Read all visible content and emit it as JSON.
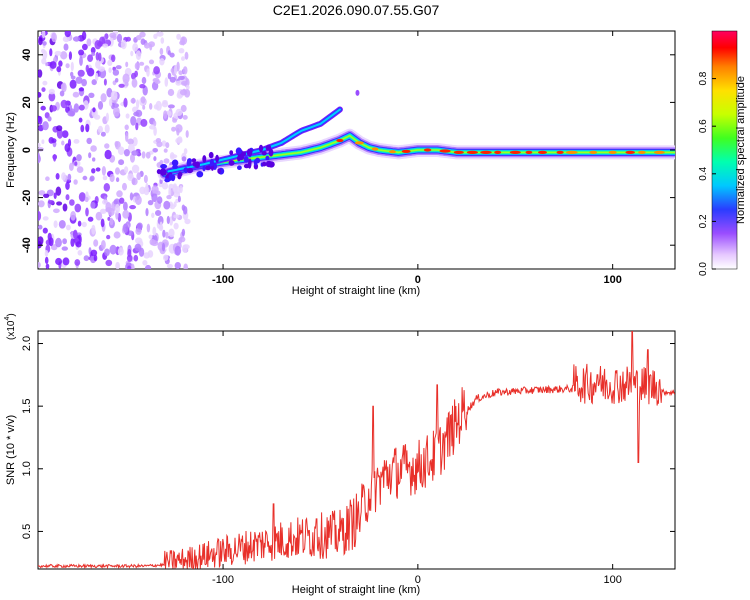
{
  "title": "C2E1.2026.090.07.55.G07",
  "chart_data": [
    {
      "type": "heatmap",
      "name": "spectrogram",
      "xlabel": "Height of straight line (km)",
      "ylabel": "Frequency (Hz)",
      "xlim": [
        -195,
        132
      ],
      "ylim": [
        -50,
        50
      ],
      "xticks": [
        -100,
        0,
        100
      ],
      "yticks": [
        -40,
        -20,
        0,
        20,
        40
      ],
      "noise_region_x": [
        -195,
        -118
      ],
      "ridge": {
        "x": [
          -130,
          -115,
          -100,
          -90,
          -80,
          -70,
          -60,
          -50,
          -40,
          -35,
          -30,
          -25,
          -20,
          -10,
          0,
          10,
          20,
          40,
          60,
          80,
          100,
          115,
          132
        ],
        "y": [
          -10,
          -7,
          -5,
          -4,
          -3,
          -2,
          -1,
          1,
          4,
          6,
          3,
          1,
          0,
          -1,
          0,
          0,
          -1,
          -1,
          -1,
          -1,
          -1,
          -1,
          -1
        ]
      },
      "upper_branch": {
        "x": [
          -128,
          -110,
          -95,
          -80,
          -70,
          -60,
          -50,
          -45,
          -40
        ],
        "y": [
          -9,
          -6,
          -3,
          0,
          3,
          8,
          11,
          14,
          17
        ]
      },
      "isolated_blob": {
        "x": -31,
        "y": 24
      },
      "colorbar": {
        "label": "Normalized spectral amplitude",
        "ticks": [
          0.0,
          0.2,
          0.4,
          0.6,
          0.8
        ],
        "range": [
          0,
          1
        ]
      }
    },
    {
      "type": "line",
      "name": "snr",
      "xlabel": "Height of straight line (km)",
      "ylabel": "SNR (10 * v/v)",
      "multiplier": "(x10",
      "multiplier_exp": "4",
      "multiplier_close": ")",
      "xlim": [
        -195,
        132
      ],
      "ylim": [
        0.2,
        2.1
      ],
      "xticks": [
        -100,
        0,
        100
      ],
      "yticks": [
        0.5,
        1.0,
        1.5,
        2.0
      ],
      "yticklabels": [
        "0.5",
        "1.0",
        "1.5",
        "2.0"
      ],
      "series_color": "#e8302a",
      "baseline": [
        {
          "x": -195,
          "y": 0.22
        },
        {
          "x": -140,
          "y": 0.22
        },
        {
          "x": -120,
          "y": 0.24
        },
        {
          "x": -100,
          "y": 0.3
        },
        {
          "x": -80,
          "y": 0.36
        },
        {
          "x": -60,
          "y": 0.4
        },
        {
          "x": -40,
          "y": 0.42
        },
        {
          "x": -30,
          "y": 0.55
        },
        {
          "x": -25,
          "y": 0.75
        },
        {
          "x": -15,
          "y": 0.9
        },
        {
          "x": 0,
          "y": 0.95
        },
        {
          "x": 10,
          "y": 1.05
        },
        {
          "x": 20,
          "y": 1.3
        },
        {
          "x": 25,
          "y": 1.45
        },
        {
          "x": 30,
          "y": 1.55
        },
        {
          "x": 40,
          "y": 1.6
        },
        {
          "x": 60,
          "y": 1.62
        },
        {
          "x": 80,
          "y": 1.63
        },
        {
          "x": 100,
          "y": 1.63
        },
        {
          "x": 115,
          "y": 1.62
        },
        {
          "x": 132,
          "y": 1.6
        }
      ],
      "spikes": [
        {
          "x": -74,
          "y": 0.72
        },
        {
          "x": -52,
          "y": 0.6
        },
        {
          "x": -23,
          "y": 1.5
        },
        {
          "x": 10,
          "y": 1.67
        },
        {
          "x": 92,
          "y": 1.75
        },
        {
          "x": 110,
          "y": 2.1
        },
        {
          "x": 113,
          "y": 1.05
        },
        {
          "x": 118,
          "y": 1.95
        }
      ]
    }
  ]
}
